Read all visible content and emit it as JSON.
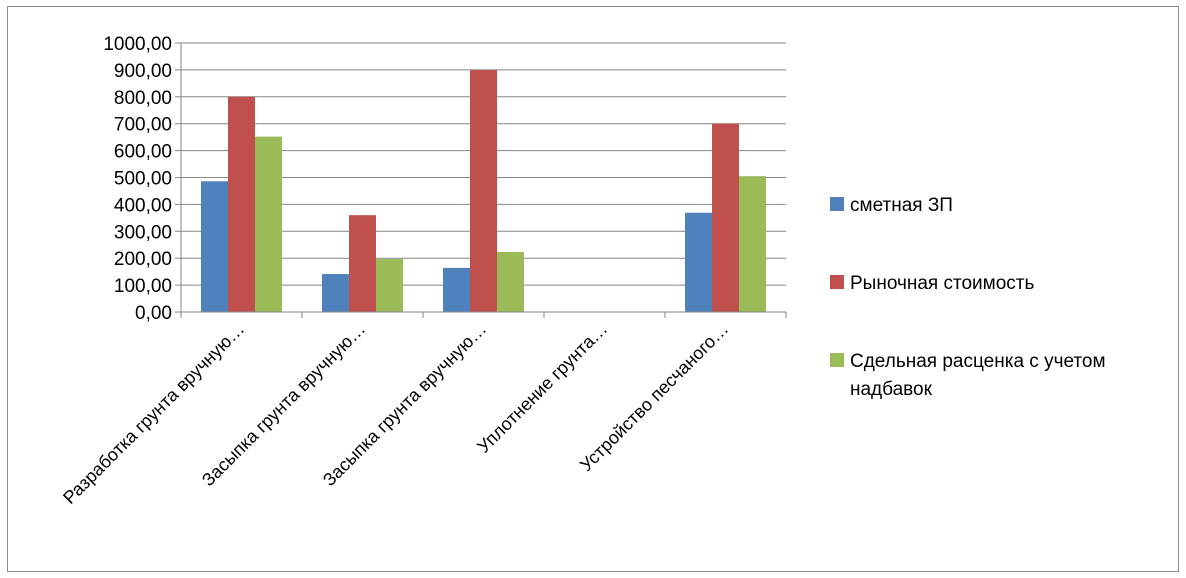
{
  "chart_data": {
    "type": "bar",
    "categories": [
      "Разработка грунта вручную…",
      "Засыпка грунта вручную…",
      "Засыпка грунта вручную…",
      "Уплотнение грунта…",
      "Устройство песчаного…"
    ],
    "series": [
      {
        "name": "сметная ЗП",
        "color": "#4F81BD",
        "values": [
          486,
          141,
          164,
          0,
          369
        ]
      },
      {
        "name": "Рыночная стоимость",
        "color": "#C0504D",
        "values": [
          800,
          360,
          900,
          0,
          700
        ]
      },
      {
        "name": "Сдельная расценка с учетом надбавок",
        "color": "#9BBB59",
        "values": [
          652,
          197,
          223,
          0,
          505
        ]
      }
    ],
    "y_ticks": [
      "0,00",
      "100,00",
      "200,00",
      "300,00",
      "400,00",
      "500,00",
      "600,00",
      "700,00",
      "800,00",
      "900,00",
      "1000,00"
    ],
    "ylim": [
      0,
      1000
    ],
    "legend_position": "right",
    "grid": "horizontal"
  }
}
